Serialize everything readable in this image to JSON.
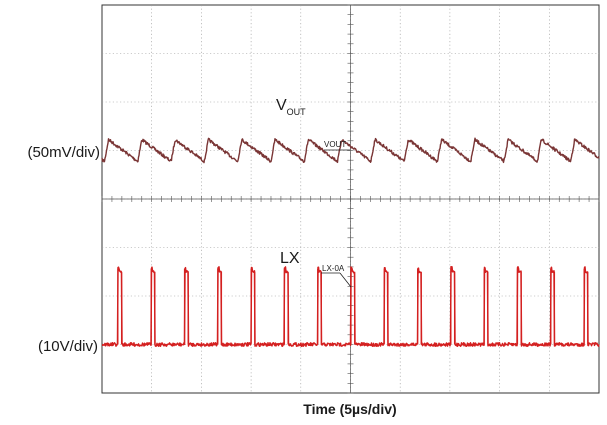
{
  "chart_data": {
    "type": "line",
    "title": "",
    "xlabel": "Time (5µs/div)",
    "x_divisions": 10,
    "y_divisions": 8,
    "grid": true,
    "series": [
      {
        "name": "VOUT",
        "label_main": "V",
        "label_sub": "OUT",
        "scale_label": "(50mV/div)",
        "marker_label": "VOUT",
        "color": "#7a3535",
        "waveform": "sawtooth ripple",
        "ripple_divisions": 0.45,
        "offset_divisions": 1.0,
        "period_divisions": 0.67,
        "cycles": 15
      },
      {
        "name": "LX",
        "label_main": "LX",
        "scale_label": "(10V/div)",
        "marker_label": "LX-0A",
        "color": "#d42020",
        "waveform": "switching pulses",
        "pulse_high_divisions": 1.5,
        "baseline_offset_divisions": -3.0,
        "period_divisions": 0.67,
        "duty_cycle": 0.11,
        "cycles": 15
      }
    ]
  }
}
